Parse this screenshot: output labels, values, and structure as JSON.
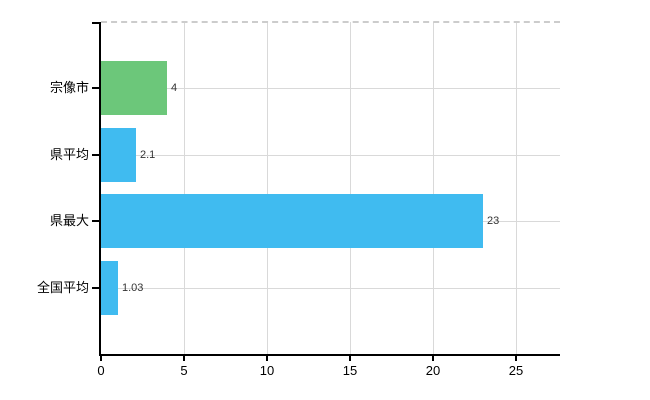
{
  "chart_data": {
    "type": "bar",
    "orientation": "horizontal",
    "title": "",
    "xlabel": "",
    "ylabel": "",
    "categories": [
      "宗像市",
      "県平均",
      "県最大",
      "全国平均"
    ],
    "values": [
      4,
      2.1,
      23,
      1.03
    ],
    "value_labels": [
      "4",
      "2.1",
      "23",
      "1.03"
    ],
    "bar_colors": [
      "#6cc77a",
      "#40bbf0",
      "#40bbf0",
      "#40bbf0"
    ],
    "x_ticks": [
      0,
      5,
      10,
      15,
      20,
      25
    ],
    "x_tick_labels": [
      "0",
      "5",
      "10",
      "15",
      "20",
      "25"
    ],
    "xlim": [
      0,
      27.65
    ],
    "grid": true,
    "legend": false
  },
  "colors": {
    "bar_green": "#6cc77a",
    "bar_blue": "#40bbf0",
    "gridline": "#d9d9d9",
    "top_border": "#cccccc",
    "axis": "#000000",
    "value_label": "#333333",
    "background": "#ffffff"
  }
}
